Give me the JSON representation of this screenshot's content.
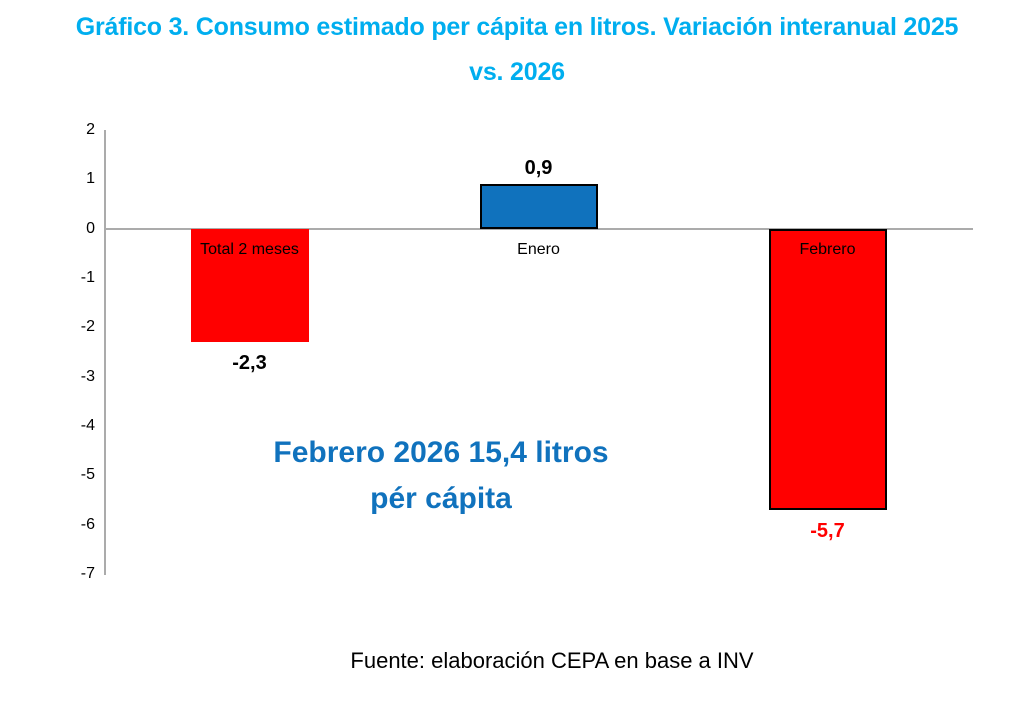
{
  "title": {
    "line1": "Gráfico 3. Consumo estimado per cápita en litros. Variación interanual 2025",
    "line2": "vs. 2026"
  },
  "annotation": {
    "line1": "Febrero 2026 15,4 litros",
    "line2": "pér cápita"
  },
  "source": {
    "text": "Fuente: elaboración CEPA en base a INV"
  },
  "colors": {
    "title_blue": "#00AEEF",
    "annotation_blue": "#1072BD",
    "bar_blue": "#1072BD",
    "bar_red": "#FF0000",
    "axis_gray": "#ABABAB",
    "label_black": "#000000",
    "negative_label_red": "#FF0000"
  },
  "chart_data": {
    "type": "bar",
    "title": "Gráfico 3. Consumo estimado per cápita en litros. Variación interanual 2025 vs. 2026",
    "categories": [
      "Total 2 meses",
      "Enero",
      "Febrero"
    ],
    "values": [
      -2.3,
      0.9,
      -5.7
    ],
    "value_labels": [
      "-2,3",
      "0,9",
      "-5,7"
    ],
    "value_label_colors": [
      "#000000",
      "#000000",
      "#FF0000"
    ],
    "bar_colors": [
      "#FF0000",
      "#1072BD",
      "#FF0000"
    ],
    "bar_borders": [
      "none",
      "#000000",
      "#000000"
    ],
    "xlabel": "",
    "ylabel": "",
    "ylim": [
      -7,
      2
    ],
    "yticks": [
      2,
      1,
      0,
      -1,
      -2,
      -3,
      -4,
      -5,
      -6,
      -7
    ],
    "grid": false,
    "legend": false,
    "annotation": "Febrero 2026 15,4 litros pér cápita"
  }
}
